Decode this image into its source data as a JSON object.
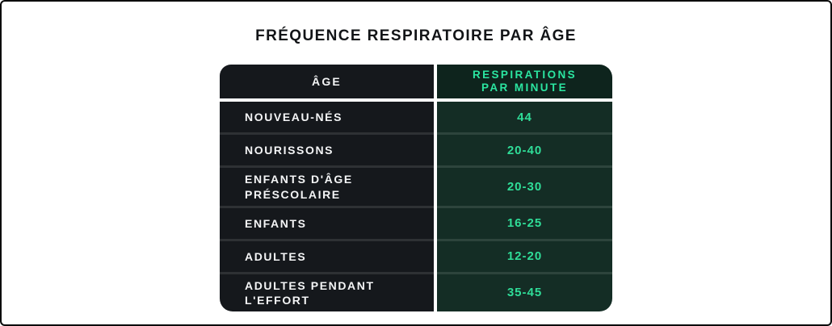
{
  "page": {
    "title": "FRÉQUENCE RESPIRATOIRE PAR ÂGE"
  },
  "table": {
    "header": {
      "age_label": "ÂGE",
      "value_label_line1": "RESPIRATIONS",
      "value_label_line2": "PAR MINUTE"
    },
    "rows": [
      {
        "age": "NOUVEAU-NÉS",
        "value": "44"
      },
      {
        "age": "NOURISSONS",
        "value": "20-40"
      },
      {
        "age": "ENFANTS D'ÂGE PRÉSCOLAIRE",
        "value": "20-30"
      },
      {
        "age": "ENFANTS",
        "value": "16-25"
      },
      {
        "age": "ADULTES",
        "value": "12-20"
      },
      {
        "age": "ADULTES PENDANT L'EFFORT",
        "value": "35-45"
      }
    ]
  },
  "colors": {
    "frame_border": "#0a0a0a",
    "title_text": "#121417",
    "age_cell_bg": "#15181c",
    "age_cell_text": "#f4f5f6",
    "value_cell_bg": "#142d25",
    "value_cell_text": "#2fdd98",
    "header_value_bg": "#0e241d",
    "header_value_text": "#2be6a1",
    "column_gap": "#ffffff"
  },
  "chart_data": {
    "type": "table",
    "title": "FRÉQUENCE RESPIRATOIRE PAR ÂGE",
    "columns": [
      "ÂGE",
      "RESPIRATIONS PAR MINUTE"
    ],
    "rows": [
      [
        "NOUVEAU-NÉS",
        "44"
      ],
      [
        "NOURISSONS",
        "20-40"
      ],
      [
        "ENFANTS D'ÂGE PRÉSCOLAIRE",
        "20-30"
      ],
      [
        "ENFANTS",
        "16-25"
      ],
      [
        "ADULTES",
        "12-20"
      ],
      [
        "ADULTES PENDANT L'EFFORT",
        "35-45"
      ]
    ],
    "value_unit": "respirations par minute",
    "legend_position": "none",
    "grid": false
  }
}
